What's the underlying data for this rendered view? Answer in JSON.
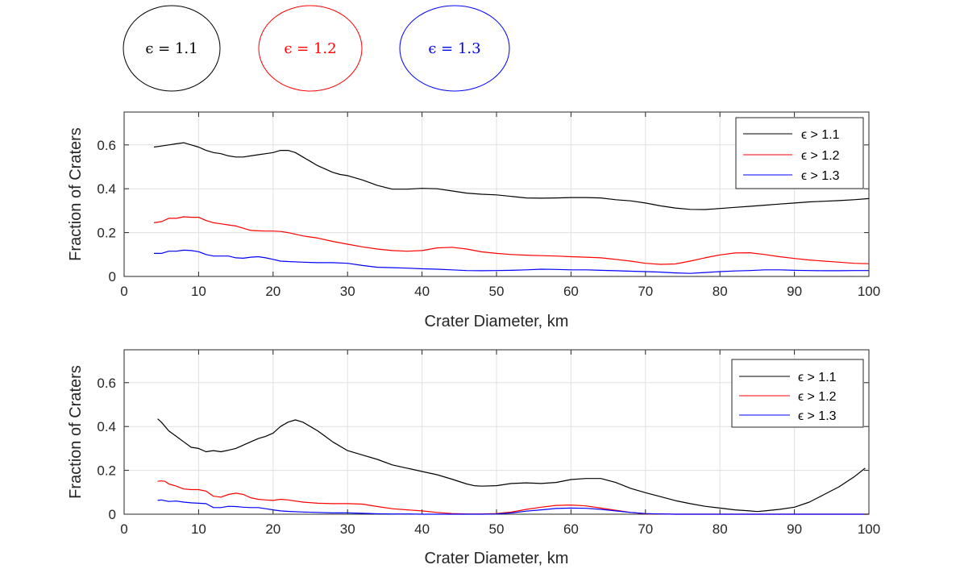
{
  "ellipses": [
    {
      "label": "ϵ = 1.1",
      "color": "#000000"
    },
    {
      "label": "ϵ = 1.2",
      "color": "#ff0000"
    },
    {
      "label": "ϵ = 1.3",
      "color": "#0000ff"
    }
  ],
  "chart_data": [
    {
      "type": "line",
      "xlabel": "Crater Diameter, km",
      "ylabel": "Fraction of Craters",
      "xlim": [
        0,
        100
      ],
      "ylim": [
        0,
        0.75
      ],
      "xticks": [
        0,
        10,
        20,
        30,
        40,
        50,
        60,
        70,
        80,
        90,
        100
      ],
      "yticks": [
        0,
        0.2,
        0.4,
        0.6
      ],
      "ytick_labels": [
        "0",
        "0.2",
        "0.4",
        "0.6"
      ],
      "grid": true,
      "legend_position": "top-right",
      "series": [
        {
          "name": "ϵ > 1.1",
          "color": "#000000",
          "x": [
            4,
            5,
            6,
            7,
            8,
            9,
            10,
            11,
            12,
            13,
            14,
            15,
            16,
            17,
            18,
            19,
            20,
            21,
            22,
            23,
            24,
            25,
            26,
            27,
            28,
            29,
            30,
            32,
            34,
            36,
            38,
            40,
            42,
            44,
            46,
            48,
            50,
            52,
            54,
            56,
            58,
            60,
            62,
            64,
            66,
            68,
            70,
            72,
            74,
            76,
            78,
            80,
            82,
            84,
            86,
            88,
            90,
            92,
            94,
            96,
            98,
            100
          ],
          "y": [
            0.59,
            0.595,
            0.6,
            0.605,
            0.61,
            0.6,
            0.59,
            0.575,
            0.565,
            0.56,
            0.55,
            0.545,
            0.545,
            0.55,
            0.555,
            0.56,
            0.565,
            0.575,
            0.575,
            0.565,
            0.545,
            0.525,
            0.505,
            0.49,
            0.475,
            0.465,
            0.46,
            0.44,
            0.415,
            0.398,
            0.398,
            0.402,
            0.4,
            0.39,
            0.38,
            0.375,
            0.372,
            0.365,
            0.358,
            0.357,
            0.358,
            0.36,
            0.36,
            0.358,
            0.35,
            0.345,
            0.335,
            0.322,
            0.312,
            0.306,
            0.305,
            0.31,
            0.315,
            0.32,
            0.325,
            0.33,
            0.335,
            0.34,
            0.343,
            0.346,
            0.35,
            0.355
          ]
        },
        {
          "name": "ϵ > 1.2",
          "color": "#ff0000",
          "x": [
            4,
            5,
            6,
            7,
            8,
            9,
            10,
            11,
            12,
            13,
            14,
            15,
            16,
            17,
            18,
            19,
            20,
            21,
            22,
            24,
            26,
            28,
            30,
            32,
            34,
            36,
            38,
            40,
            42,
            44,
            46,
            48,
            50,
            52,
            54,
            56,
            58,
            60,
            62,
            64,
            66,
            68,
            70,
            72,
            74,
            76,
            78,
            80,
            82,
            84,
            86,
            88,
            90,
            92,
            94,
            96,
            98,
            100
          ],
          "y": [
            0.245,
            0.25,
            0.265,
            0.265,
            0.272,
            0.27,
            0.27,
            0.255,
            0.245,
            0.24,
            0.235,
            0.23,
            0.22,
            0.21,
            0.208,
            0.207,
            0.207,
            0.205,
            0.2,
            0.185,
            0.175,
            0.16,
            0.147,
            0.135,
            0.125,
            0.118,
            0.115,
            0.118,
            0.13,
            0.133,
            0.125,
            0.112,
            0.105,
            0.1,
            0.097,
            0.095,
            0.093,
            0.09,
            0.088,
            0.085,
            0.078,
            0.07,
            0.06,
            0.055,
            0.057,
            0.07,
            0.085,
            0.098,
            0.107,
            0.108,
            0.1,
            0.09,
            0.082,
            0.075,
            0.07,
            0.065,
            0.06,
            0.058
          ]
        },
        {
          "name": "ϵ > 1.3",
          "color": "#0000ff",
          "x": [
            4,
            5,
            6,
            7,
            8,
            9,
            10,
            11,
            12,
            13,
            14,
            15,
            16,
            17,
            18,
            19,
            20,
            21,
            22,
            24,
            26,
            28,
            30,
            32,
            34,
            36,
            38,
            40,
            42,
            44,
            46,
            48,
            50,
            52,
            54,
            56,
            58,
            60,
            62,
            64,
            66,
            68,
            70,
            72,
            74,
            76,
            78,
            80,
            82,
            84,
            86,
            88,
            90,
            92,
            94,
            96,
            98,
            100
          ],
          "y": [
            0.105,
            0.105,
            0.115,
            0.115,
            0.12,
            0.118,
            0.113,
            0.1,
            0.093,
            0.093,
            0.093,
            0.085,
            0.083,
            0.088,
            0.09,
            0.085,
            0.078,
            0.07,
            0.068,
            0.065,
            0.063,
            0.063,
            0.06,
            0.05,
            0.042,
            0.04,
            0.038,
            0.035,
            0.033,
            0.03,
            0.027,
            0.026,
            0.027,
            0.028,
            0.03,
            0.033,
            0.032,
            0.03,
            0.03,
            0.028,
            0.026,
            0.024,
            0.022,
            0.02,
            0.016,
            0.014,
            0.018,
            0.022,
            0.025,
            0.027,
            0.03,
            0.03,
            0.028,
            0.027,
            0.026,
            0.026,
            0.027,
            0.027
          ]
        }
      ]
    },
    {
      "type": "line",
      "xlabel": "Crater Diameter, km",
      "ylabel": "Fraction of Craters",
      "xlim": [
        0,
        100
      ],
      "ylim": [
        0,
        0.75
      ],
      "xticks": [
        0,
        10,
        20,
        30,
        40,
        50,
        60,
        70,
        80,
        90,
        100
      ],
      "yticks": [
        0,
        0.2,
        0.4,
        0.6
      ],
      "ytick_labels": [
        "0",
        "0.2",
        "0.4",
        "0.6"
      ],
      "grid": true,
      "legend_position": "top-right",
      "series": [
        {
          "name": "ϵ > 1.1",
          "color": "#000000",
          "x": [
            4.5,
            5,
            6,
            7,
            8,
            9,
            10,
            11,
            12,
            13,
            14,
            15,
            16,
            17,
            18,
            19,
            20,
            21,
            22,
            23,
            24,
            25,
            26,
            27,
            28,
            30,
            32,
            34,
            36,
            38,
            40,
            42,
            44,
            46,
            47,
            48,
            50,
            52,
            54,
            56,
            58,
            60,
            62,
            64,
            66,
            68,
            70,
            72,
            74,
            76,
            78,
            80,
            82,
            84,
            85,
            86,
            88,
            90,
            92,
            94,
            96,
            98,
            99.5
          ],
          "y": [
            0.435,
            0.42,
            0.38,
            0.355,
            0.33,
            0.305,
            0.3,
            0.285,
            0.29,
            0.285,
            0.292,
            0.3,
            0.315,
            0.33,
            0.345,
            0.355,
            0.37,
            0.4,
            0.42,
            0.43,
            0.42,
            0.4,
            0.38,
            0.355,
            0.33,
            0.29,
            0.27,
            0.25,
            0.225,
            0.21,
            0.195,
            0.18,
            0.16,
            0.138,
            0.13,
            0.128,
            0.13,
            0.14,
            0.143,
            0.14,
            0.145,
            0.158,
            0.163,
            0.163,
            0.145,
            0.118,
            0.098,
            0.08,
            0.062,
            0.048,
            0.036,
            0.028,
            0.02,
            0.015,
            0.012,
            0.015,
            0.022,
            0.032,
            0.055,
            0.09,
            0.125,
            0.17,
            0.21
          ]
        },
        {
          "name": "ϵ > 1.2",
          "color": "#ff0000",
          "x": [
            4.5,
            5,
            5.5,
            6,
            7,
            8,
            9,
            10,
            11,
            12,
            13,
            14,
            15,
            16,
            17,
            18,
            19,
            20,
            21,
            22,
            24,
            26,
            28,
            30,
            32,
            34,
            36,
            38,
            40,
            42,
            44,
            46,
            48,
            50,
            52,
            54,
            56,
            58,
            60,
            62,
            64,
            66,
            68,
            70,
            72,
            74,
            80,
            90,
            100
          ],
          "y": [
            0.15,
            0.152,
            0.15,
            0.138,
            0.128,
            0.115,
            0.112,
            0.112,
            0.105,
            0.082,
            0.078,
            0.09,
            0.096,
            0.09,
            0.075,
            0.068,
            0.065,
            0.063,
            0.068,
            0.065,
            0.055,
            0.05,
            0.048,
            0.048,
            0.046,
            0.035,
            0.025,
            0.02,
            0.015,
            0.008,
            0.003,
            0.001,
            0.001,
            0.003,
            0.01,
            0.022,
            0.032,
            0.04,
            0.042,
            0.038,
            0.028,
            0.018,
            0.008,
            0.002,
            0.001,
            0,
            0,
            0,
            0
          ]
        },
        {
          "name": "ϵ > 1.3",
          "color": "#0000ff",
          "x": [
            4.5,
            5,
            6,
            7,
            8,
            9,
            10,
            11,
            12,
            13,
            14,
            15,
            16,
            17,
            18,
            19,
            20,
            21,
            22,
            24,
            26,
            28,
            30,
            32,
            34,
            36,
            38,
            40,
            42,
            44,
            46,
            48,
            50,
            52,
            54,
            56,
            58,
            60,
            62,
            64,
            66,
            68,
            70,
            72,
            74,
            80,
            90,
            100
          ],
          "y": [
            0.063,
            0.065,
            0.058,
            0.06,
            0.055,
            0.052,
            0.05,
            0.048,
            0.03,
            0.03,
            0.036,
            0.035,
            0.032,
            0.03,
            0.03,
            0.025,
            0.02,
            0.015,
            0.013,
            0.01,
            0.008,
            0.006,
            0.006,
            0.004,
            0.002,
            0.001,
            0.001,
            0,
            0,
            0,
            0,
            0,
            0.001,
            0.006,
            0.014,
            0.02,
            0.026,
            0.028,
            0.027,
            0.022,
            0.015,
            0.008,
            0.003,
            0.001,
            0,
            0,
            0,
            0
          ]
        }
      ]
    }
  ]
}
